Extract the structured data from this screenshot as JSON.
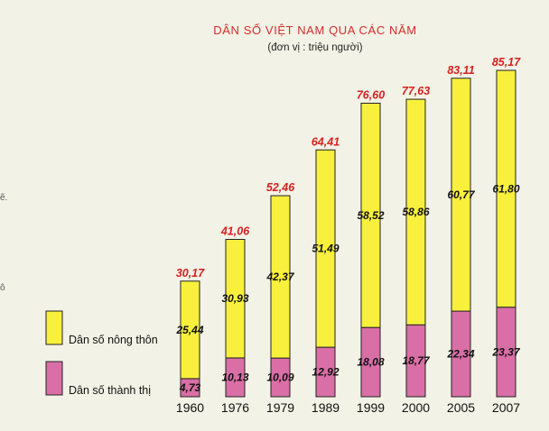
{
  "chart_data": {
    "type": "bar",
    "stacked": true,
    "title": "DÂN SỐ VIỆT NAM QUA CÁC NĂM",
    "subtitle": "(đơn vị : triệu người)",
    "categories": [
      "1960",
      "1976",
      "1979",
      "1989",
      "1999",
      "2000",
      "2005",
      "2007"
    ],
    "series": [
      {
        "name": "Dân số thành thị",
        "values": [
          4.73,
          10.13,
          10.09,
          12.92,
          18.08,
          18.77,
          22.34,
          23.37
        ],
        "labels": [
          "4,73",
          "10,13",
          "10,09",
          "12,92",
          "18,08",
          "18,77",
          "22,34",
          "23,37"
        ],
        "color": "#d96fa6"
      },
      {
        "name": "Dân số nông thôn",
        "values": [
          25.44,
          30.93,
          42.37,
          51.49,
          58.52,
          58.86,
          60.77,
          61.8
        ],
        "labels": [
          "25,44",
          "30,93",
          "42,37",
          "51,49",
          "58,52",
          "58,86",
          "60,77",
          "61,80"
        ],
        "color": "#f8f03c"
      }
    ],
    "totals": [
      30.17,
      41.06,
      52.46,
      64.41,
      76.6,
      77.63,
      83.11,
      85.17
    ],
    "total_labels": [
      "30,17",
      "41,06",
      "52,46",
      "64,41",
      "76,60",
      "77,63",
      "83,11",
      "85,17"
    ],
    "total_label_color": "#d62020",
    "legend": {
      "position": "left",
      "items": [
        "Dân số nông thôn",
        "Dân số thành thị"
      ]
    },
    "axes_visible": false,
    "grid": false
  },
  "edge_marks": [
    "ẽ.",
    "ô"
  ]
}
